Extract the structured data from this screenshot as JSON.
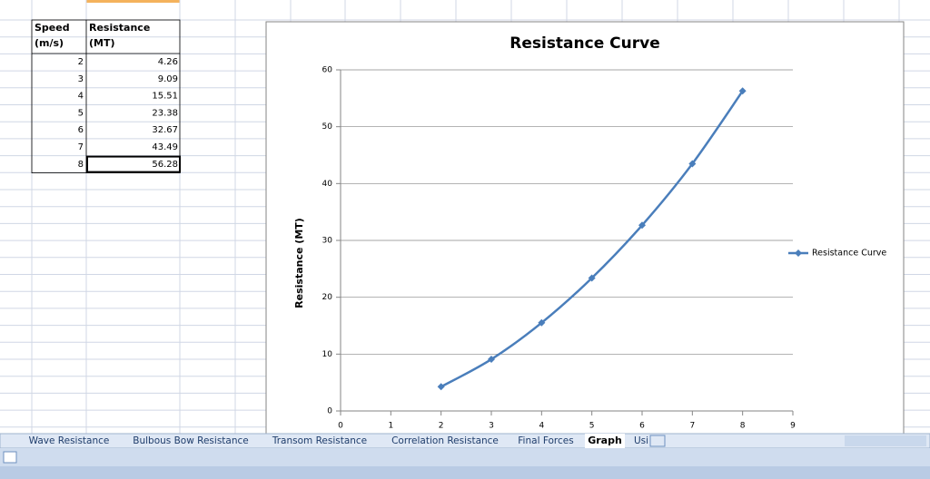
{
  "table": {
    "header": [
      [
        "Speed",
        "Resistance"
      ],
      [
        "(m/s)",
        "(MT)"
      ]
    ],
    "rows": [
      [
        2,
        4.26
      ],
      [
        3,
        9.09
      ],
      [
        4,
        15.51
      ],
      [
        5,
        23.38
      ],
      [
        6,
        32.67
      ],
      [
        7,
        43.49
      ],
      [
        8,
        56.28
      ]
    ]
  },
  "chart_data": {
    "type": "line",
    "title": "Resistance Curve",
    "y_label": "Resistance (MT)",
    "x": [
      2,
      3,
      4,
      5,
      6,
      7,
      8
    ],
    "series": [
      {
        "name": "Resistance Curve",
        "color": "#4a7ebb",
        "values": [
          4.26,
          9.09,
          15.51,
          23.38,
          32.67,
          43.49,
          56.28
        ]
      }
    ],
    "xlim": [
      0,
      9
    ],
    "xticks": [
      0,
      1,
      2,
      3,
      4,
      5,
      6,
      7,
      8,
      9
    ],
    "ylim": [
      0,
      60
    ],
    "yticks": [
      0,
      10,
      20,
      30,
      40,
      50,
      60
    ],
    "grid": true,
    "legend": "right",
    "smooth": true
  },
  "sheet_tabs": [
    "Wave Resistance",
    "Bulbous Bow Resistance",
    "Transom Resistance",
    "Correlation Resistance",
    "Final Forces",
    "Graph",
    "Usi"
  ],
  "active_tab": 5
}
